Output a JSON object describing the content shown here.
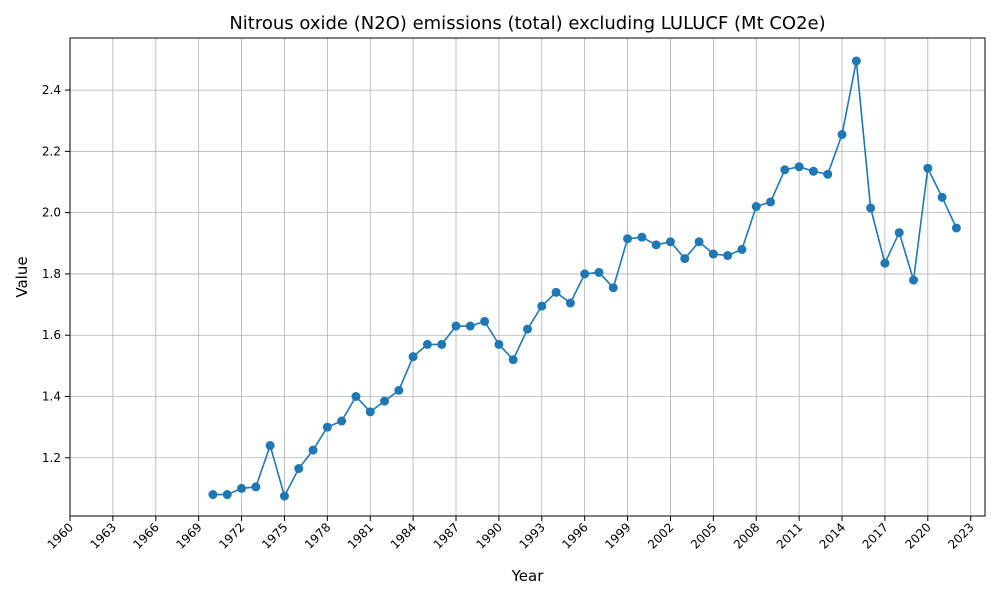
{
  "chart_data": {
    "type": "line",
    "title": "Nitrous oxide (N2O) emissions (total) excluding LULUCF (Mt CO2e)",
    "xlabel": "Year",
    "ylabel": "Value",
    "xlim": [
      1960,
      2024
    ],
    "ylim": [
      1.01,
      2.57
    ],
    "xticks": [
      1960,
      1963,
      1966,
      1969,
      1972,
      1975,
      1978,
      1981,
      1984,
      1987,
      1990,
      1993,
      1996,
      1999,
      2002,
      2005,
      2008,
      2011,
      2014,
      2017,
      2020,
      2023
    ],
    "yticks": [
      1.2,
      1.4,
      1.6,
      1.8,
      2.0,
      2.2,
      2.4
    ],
    "ytick_labels": [
      "1.2",
      "1.4",
      "1.6",
      "1.8",
      "2.0",
      "2.2",
      "2.4"
    ],
    "grid": true,
    "color": "#1f77b4",
    "x": [
      1970,
      1971,
      1972,
      1973,
      1974,
      1975,
      1976,
      1977,
      1978,
      1979,
      1980,
      1981,
      1982,
      1983,
      1984,
      1985,
      1986,
      1987,
      1988,
      1989,
      1990,
      1991,
      1992,
      1993,
      1994,
      1995,
      1996,
      1997,
      1998,
      1999,
      2000,
      2001,
      2002,
      2003,
      2004,
      2005,
      2006,
      2007,
      2008,
      2009,
      2010,
      2011,
      2012,
      2013,
      2014,
      2015,
      2016,
      2017,
      2018,
      2019,
      2020,
      2021,
      2022
    ],
    "y": [
      1.08,
      1.08,
      1.1,
      1.105,
      1.24,
      1.075,
      1.165,
      1.225,
      1.3,
      1.32,
      1.4,
      1.35,
      1.385,
      1.42,
      1.53,
      1.57,
      1.57,
      1.63,
      1.63,
      1.645,
      1.57,
      1.52,
      1.62,
      1.695,
      1.74,
      1.705,
      1.8,
      1.805,
      1.755,
      1.915,
      1.92,
      1.895,
      1.905,
      1.85,
      1.905,
      1.865,
      1.86,
      1.88,
      2.02,
      2.035,
      2.14,
      2.15,
      2.135,
      2.125,
      2.255,
      2.495,
      2.015,
      1.835,
      1.935,
      1.78,
      2.145,
      2.05,
      1.95
    ]
  }
}
